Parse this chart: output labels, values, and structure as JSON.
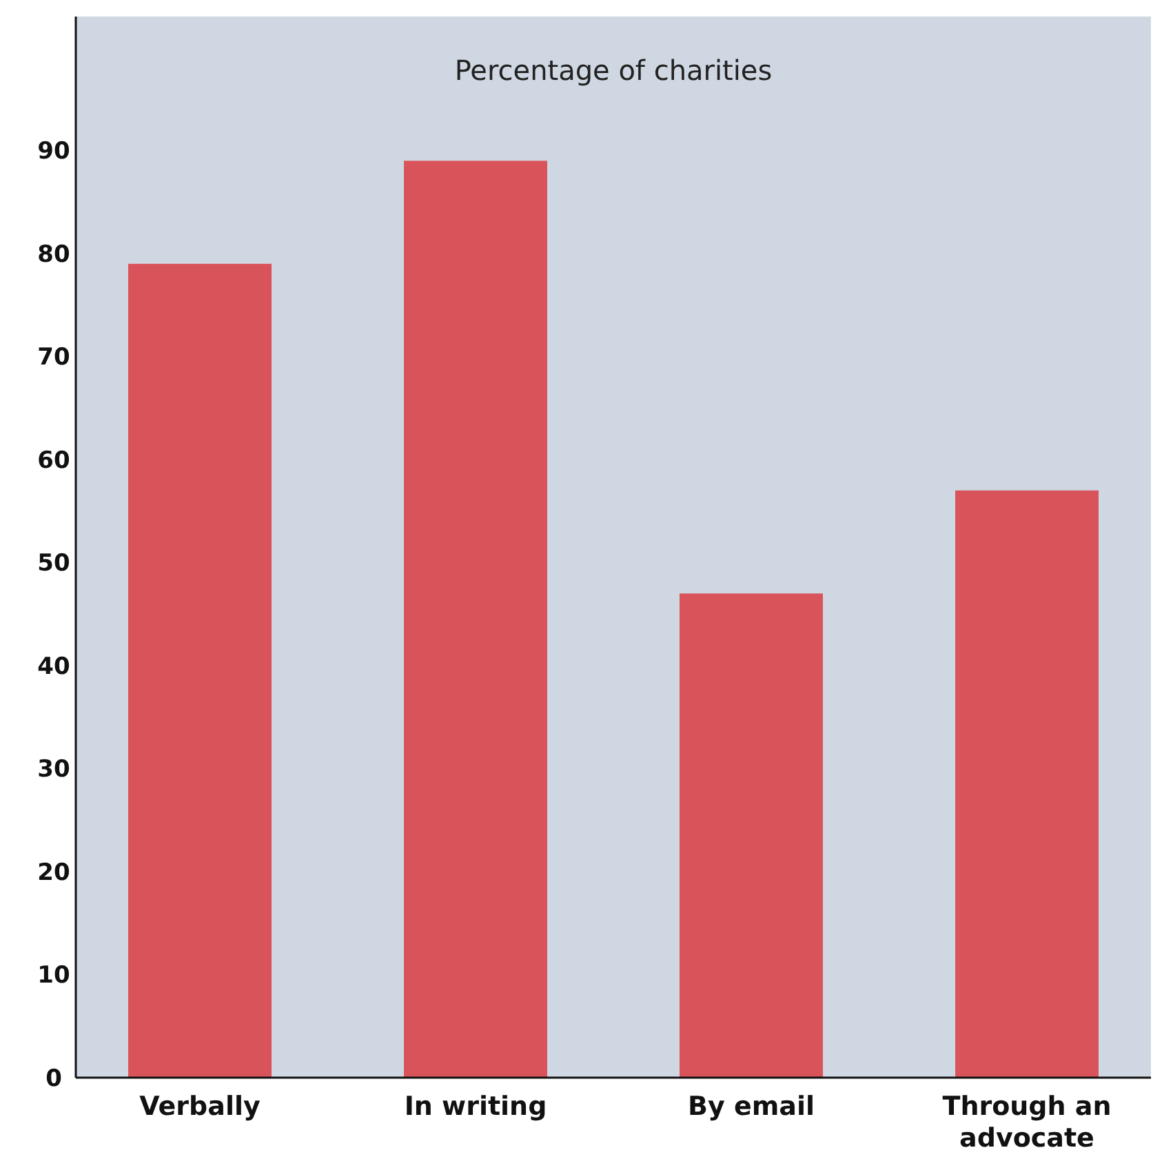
{
  "chart_data": {
    "type": "bar",
    "ylabel": "Percentage of charities",
    "categories": [
      "Verbally",
      "In writing",
      "By email",
      "Through an advocate"
    ],
    "values": [
      79,
      89,
      47,
      57
    ],
    "color": "#d9535a",
    "ylim": [
      0,
      103
    ],
    "yticks": [
      0,
      10,
      20,
      30,
      40,
      50,
      60,
      70,
      80,
      90
    ],
    "grid": false
  }
}
